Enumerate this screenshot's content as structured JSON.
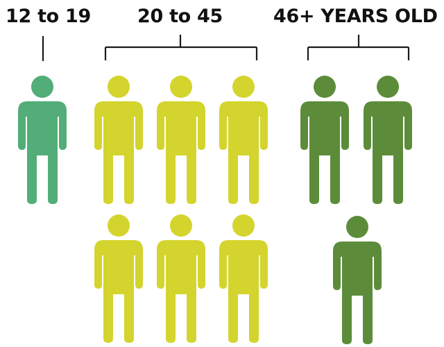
{
  "groups": [
    {
      "label": "12 to 19",
      "count": 1,
      "color": "#52ad78"
    },
    {
      "label": "20 to 45",
      "count": 6,
      "color": "#d4d42e"
    },
    {
      "label": "46+ YEARS OLD",
      "count": 3,
      "color": "#5c8c39"
    }
  ],
  "line_color": "#1a1a1a",
  "icon_name": "person-icon"
}
